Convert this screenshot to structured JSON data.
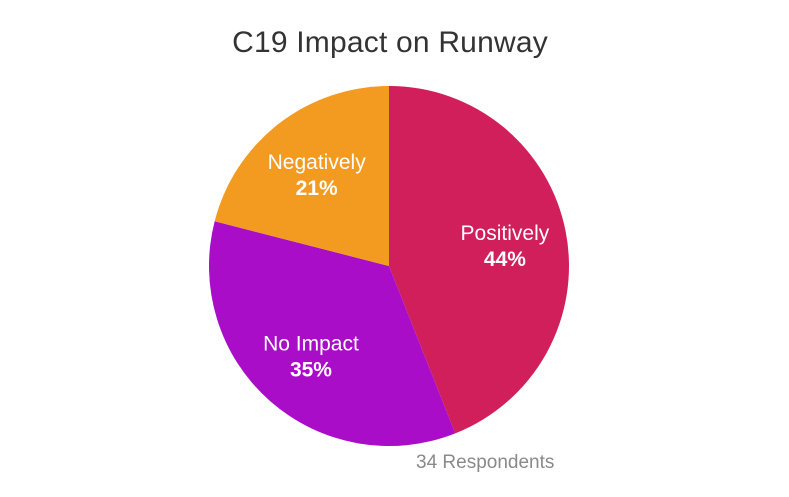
{
  "chart_data": {
    "type": "pie",
    "title": "C19 Impact on Runway",
    "slices": [
      {
        "label": "Positively",
        "value": 44,
        "value_label": "44%",
        "color": "#d01f5a"
      },
      {
        "label": "No Impact",
        "value": 35,
        "value_label": "35%",
        "color": "#aa0dc8"
      },
      {
        "label": "Negatively",
        "value": 21,
        "value_label": "21%",
        "color": "#f39a21"
      }
    ],
    "annotation": "34 Respondents"
  }
}
